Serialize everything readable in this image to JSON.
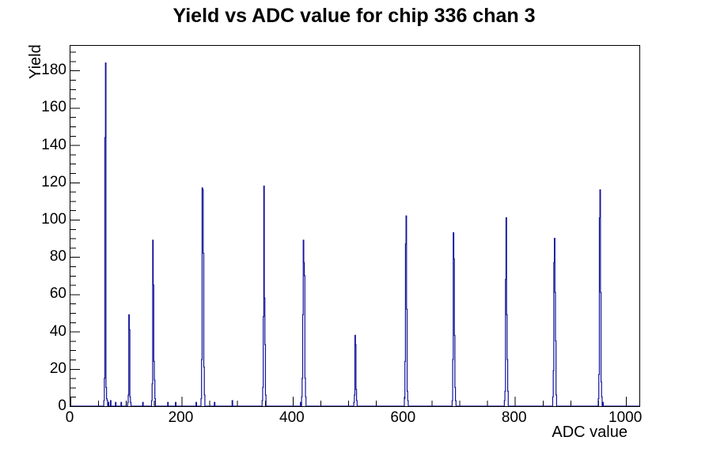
{
  "chart_data": {
    "type": "histogram-step-line",
    "title": "Yield vs ADC value for chip 336 chan 3",
    "xlabel": "ADC value",
    "ylabel": "Yield",
    "xlim": [
      0,
      1024
    ],
    "ylim": [
      0,
      193.2
    ],
    "x_major_ticks": [
      0,
      200,
      400,
      600,
      800,
      1000
    ],
    "x_major_tick_labels": [
      "0",
      "200",
      "400",
      "600",
      "800",
      "1000"
    ],
    "x_minor_step": 50,
    "y_major_ticks": [
      0,
      20,
      40,
      60,
      80,
      100,
      120,
      140,
      160,
      180
    ],
    "y_major_tick_labels": [
      "0",
      "20",
      "40",
      "60",
      "80",
      "100",
      "120",
      "140",
      "160",
      "180"
    ],
    "y_minor_step": 5,
    "grid": false,
    "legend": "none",
    "line_color": "#14149a",
    "frame_color": "#000000",
    "background_color": "#ffffff",
    "bins": [
      [
        60,
        3
      ],
      [
        61,
        15
      ],
      [
        62,
        144
      ],
      [
        63,
        184
      ],
      [
        64,
        10
      ],
      [
        65,
        4
      ],
      [
        66,
        3
      ],
      [
        68,
        2
      ],
      [
        72,
        3
      ],
      [
        81,
        2
      ],
      [
        91,
        2
      ],
      [
        103,
        2
      ],
      [
        104,
        6
      ],
      [
        105,
        49
      ],
      [
        106,
        41
      ],
      [
        107,
        5
      ],
      [
        108,
        2
      ],
      [
        130,
        2
      ],
      [
        146,
        3
      ],
      [
        147,
        12
      ],
      [
        148,
        89
      ],
      [
        149,
        65
      ],
      [
        150,
        24
      ],
      [
        151,
        14
      ],
      [
        152,
        4
      ],
      [
        175,
        2
      ],
      [
        189,
        2
      ],
      [
        226,
        2
      ],
      [
        235,
        4
      ],
      [
        236,
        25
      ],
      [
        237,
        117
      ],
      [
        238,
        116
      ],
      [
        239,
        82
      ],
      [
        240,
        21
      ],
      [
        241,
        6
      ],
      [
        259,
        2
      ],
      [
        291,
        3
      ],
      [
        345,
        3
      ],
      [
        346,
        10
      ],
      [
        347,
        48
      ],
      [
        348,
        118
      ],
      [
        349,
        58
      ],
      [
        350,
        33
      ],
      [
        351,
        6
      ],
      [
        414,
        2
      ],
      [
        416,
        5
      ],
      [
        417,
        15
      ],
      [
        418,
        49
      ],
      [
        419,
        89
      ],
      [
        420,
        77
      ],
      [
        421,
        70
      ],
      [
        422,
        15
      ],
      [
        423,
        5
      ],
      [
        510,
        2
      ],
      [
        511,
        6
      ],
      [
        512,
        38
      ],
      [
        513,
        33
      ],
      [
        514,
        9
      ],
      [
        515,
        3
      ],
      [
        601,
        4
      ],
      [
        602,
        24
      ],
      [
        603,
        87
      ],
      [
        604,
        102
      ],
      [
        605,
        52
      ],
      [
        606,
        8
      ],
      [
        607,
        3
      ],
      [
        687,
        3
      ],
      [
        688,
        25
      ],
      [
        689,
        93
      ],
      [
        690,
        79
      ],
      [
        691,
        38
      ],
      [
        692,
        10
      ],
      [
        693,
        3
      ],
      [
        781,
        3
      ],
      [
        782,
        8
      ],
      [
        783,
        68
      ],
      [
        784,
        101
      ],
      [
        785,
        49
      ],
      [
        786,
        25
      ],
      [
        787,
        8
      ],
      [
        868,
        5
      ],
      [
        869,
        19
      ],
      [
        870,
        77
      ],
      [
        871,
        90
      ],
      [
        872,
        61
      ],
      [
        873,
        35
      ],
      [
        874,
        6
      ],
      [
        950,
        4
      ],
      [
        951,
        17
      ],
      [
        952,
        101
      ],
      [
        953,
        116
      ],
      [
        954,
        61
      ],
      [
        955,
        13
      ],
      [
        956,
        5
      ],
      [
        958,
        2
      ]
    ]
  }
}
